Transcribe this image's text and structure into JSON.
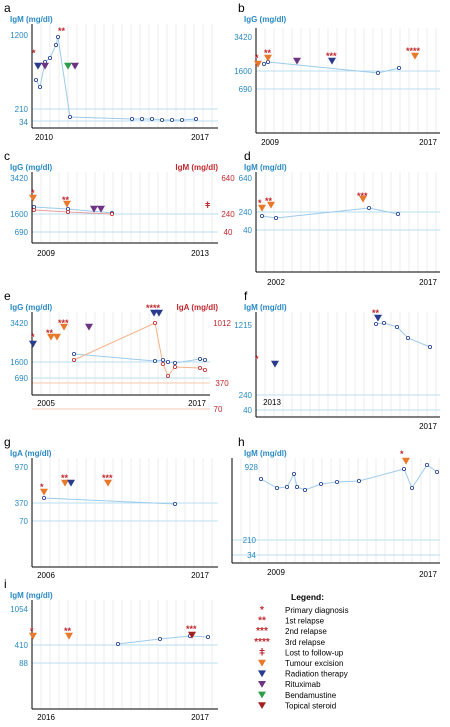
{
  "colors": {
    "blue": "#2a8ac2",
    "red": "#c1272d",
    "gridline": "#b9ddf1",
    "vgrid": "#e3e3e3",
    "orange": "#e8782a",
    "navy": "#2a3b8f",
    "purple": "#6c3483",
    "green": "#2e9d4a",
    "darkred": "#a32020",
    "series_line": "#9ccbea",
    "iga_line": "#f2b38a",
    "marker_edge": "#1f3b8f"
  },
  "legend": {
    "title": "Legend:",
    "items": [
      {
        "symbol": "*",
        "label": "Primary diagnosis",
        "kind": "text"
      },
      {
        "symbol": "**",
        "label": "1st relapse",
        "kind": "text"
      },
      {
        "symbol": "***",
        "label": "2nd relapse",
        "kind": "text"
      },
      {
        "symbol": "****",
        "label": "3rd relapse",
        "kind": "text"
      },
      {
        "symbol": "ǂ",
        "label": "Lost to follow-up",
        "kind": "text"
      },
      {
        "symbol": "orange",
        "label": "Tumour excision",
        "kind": "triangle"
      },
      {
        "symbol": "navy",
        "label": "Radiation therapy",
        "kind": "triangle"
      },
      {
        "symbol": "purple",
        "label": "Rituximab",
        "kind": "triangle"
      },
      {
        "symbol": "green",
        "label": "Bendamustine",
        "kind": "triangle"
      },
      {
        "symbol": "darkred",
        "label": "Topical steroid",
        "kind": "triangle"
      }
    ]
  },
  "chart_data": [
    {
      "panel": "a",
      "type": "line",
      "ylabel": "IgM (mg/dl)",
      "yticks": [
        "1200",
        "210",
        "34"
      ],
      "xticks": [
        "2010",
        "2017"
      ],
      "series": [
        {
          "values": [
            850,
            500,
            450,
            650,
            900,
            1200,
            34,
            33,
            33,
            32,
            32,
            31,
            32
          ]
        }
      ],
      "events": [
        {
          "symbol": "*",
          "type": "navy"
        },
        {
          "symbol": "**",
          "type": "purple"
        },
        {
          "type": "green"
        },
        {
          "type": "purple"
        }
      ]
    },
    {
      "panel": "b",
      "type": "line",
      "ylabel": "IgG (mg/dl)",
      "yticks": [
        "3420",
        "1600",
        "690"
      ],
      "xticks": [
        "2009",
        "2017"
      ],
      "series": [
        {
          "values": [
            1700,
            1800,
            1450,
            1650
          ]
        }
      ],
      "events": [
        {
          "symbol": "*",
          "type": "orange"
        },
        {
          "symbol": "**",
          "type": "orange"
        },
        {
          "type": "purple"
        },
        {
          "symbol": "***",
          "type": "navy"
        },
        {
          "symbol": "****",
          "type": "orange"
        }
      ]
    },
    {
      "panel": "c",
      "type": "line",
      "ylabel": "IgG (mg/dl)",
      "ylabel_right": "IgM (mg/dl)",
      "yticks": [
        "3420",
        "1600",
        "690"
      ],
      "yticks_right": [
        "640",
        "240",
        "40"
      ],
      "xticks": [
        "2009",
        "2013"
      ],
      "events": [
        {
          "symbol": "*",
          "type": "orange"
        },
        {
          "symbol": "**",
          "type": "orange"
        },
        {
          "type": "purple"
        },
        {
          "type": "purple"
        },
        {
          "symbol": "ǂ"
        }
      ]
    },
    {
      "panel": "d",
      "type": "line",
      "ylabel": "IgM (mg/dl)",
      "yticks": [
        "640",
        "240",
        "40"
      ],
      "xticks": [
        "2002",
        "2017"
      ],
      "events": [
        {
          "symbol": "*",
          "type": "orange"
        },
        {
          "symbol": "**",
          "type": "orange"
        },
        {
          "symbol": "***",
          "type": "orange"
        }
      ]
    },
    {
      "panel": "e",
      "type": "line",
      "ylabel": "IgG (mg/dl)",
      "ylabel_right": "IgA (mg/dl)",
      "yticks": [
        "3420",
        "1600",
        "690"
      ],
      "yticks_right": [
        "1012",
        "370",
        "70"
      ],
      "xticks": [
        "2005",
        "2017"
      ],
      "events": [
        {
          "symbol": "*",
          "type": "navy"
        },
        {
          "symbol": "**",
          "type": "orange"
        },
        {
          "symbol": "***",
          "type": "orange"
        },
        {
          "type": "purple"
        },
        {
          "symbol": "****",
          "type": "navy"
        }
      ]
    },
    {
      "panel": "f",
      "type": "line",
      "ylabel": "IgM (mg/dl)",
      "yticks": [
        "1215",
        "240",
        "40"
      ],
      "xticks": [
        "2013",
        "2017"
      ],
      "events": [
        {
          "symbol": "*",
          "type": "navy"
        },
        {
          "symbol": "**",
          "type": "navy"
        }
      ]
    },
    {
      "panel": "g",
      "type": "line",
      "ylabel": "IgA (mg/dl)",
      "yticks": [
        "970",
        "370",
        "70"
      ],
      "xticks": [
        "2006",
        "2017"
      ],
      "events": [
        {
          "symbol": "*",
          "type": "orange"
        },
        {
          "symbol": "**",
          "type": "orange"
        },
        {
          "type": "navy"
        },
        {
          "symbol": "***",
          "type": "orange"
        }
      ]
    },
    {
      "panel": "h",
      "type": "line",
      "ylabel": "IgM (mg/dl)",
      "yticks": [
        "928",
        "210",
        "34"
      ],
      "xticks": [
        "2009",
        "2017"
      ],
      "events": [
        {
          "symbol": "*",
          "type": "orange"
        }
      ]
    },
    {
      "panel": "i",
      "type": "line",
      "ylabel": "IgM (mg/dl)",
      "yticks": [
        "1054",
        "410",
        "88"
      ],
      "xticks": [
        "2016",
        "2017"
      ],
      "events": [
        {
          "symbol": "*",
          "type": "orange"
        },
        {
          "symbol": "**",
          "type": "orange"
        },
        {
          "symbol": "***",
          "type": "darkred"
        }
      ]
    }
  ]
}
